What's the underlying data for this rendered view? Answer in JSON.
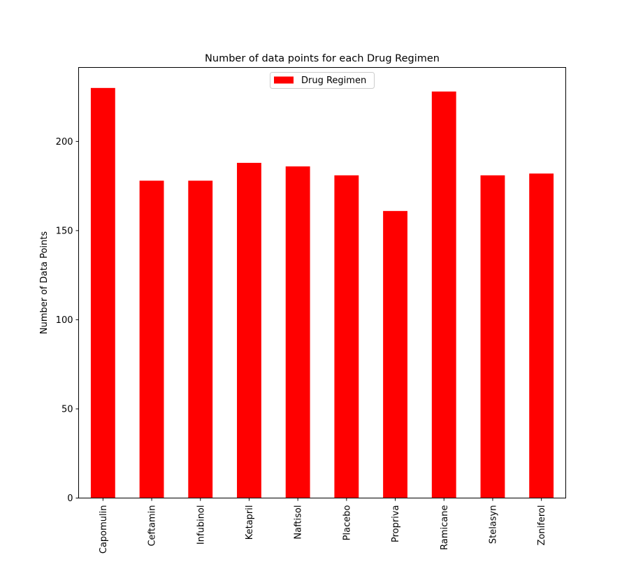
{
  "chart_data": {
    "type": "bar",
    "title": "Number of data points for each Drug Regimen",
    "xlabel": "",
    "ylabel": "Number of Data Points",
    "categories": [
      "Capomulin",
      "Ceftamin",
      "Infubinol",
      "Ketapril",
      "Naftisol",
      "Placebo",
      "Propriva",
      "Ramicane",
      "Stelasyn",
      "Zoniferol"
    ],
    "series": [
      {
        "name": "Drug Regimen",
        "values": [
          230,
          178,
          178,
          188,
          186,
          181,
          161,
          228,
          181,
          182
        ],
        "color": "#ff0000"
      }
    ],
    "yticks": [
      0,
      50,
      100,
      150,
      200
    ],
    "ylim": [
      0,
      241.5
    ],
    "grid": false,
    "legend": "upper-center",
    "xtick_rotation": "vertical"
  }
}
